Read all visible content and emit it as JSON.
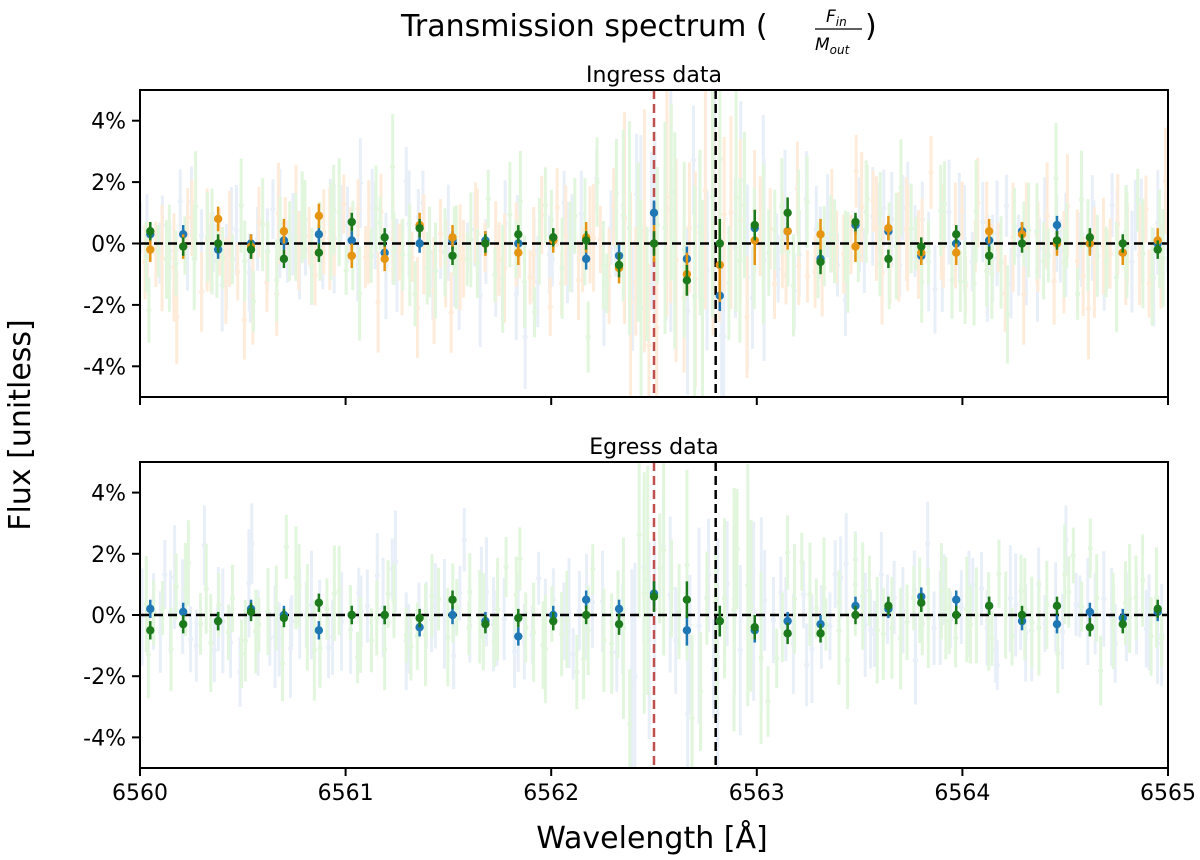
{
  "figure": {
    "suptitle": "Transmission spectrum (",
    "suptitle_num": "F",
    "suptitle_num_sub": "in",
    "suptitle_den": "M",
    "suptitle_den_sub": "out",
    "suptitle_close": ")",
    "ylabel": "Flux [unitless]",
    "xlabel": "Wavelength [Å]"
  },
  "colors": {
    "blue": "#1f77b4",
    "orange": "#e69512",
    "green": "#1c7a1c",
    "faint_blue": "#aec7e8",
    "faint_orange": "#ffbb78",
    "faint_green": "#98df8a",
    "red_line": "#c0504d",
    "black_line": "#000000"
  },
  "chart_data": [
    {
      "type": "scatter",
      "title": "Ingress data",
      "xlim": [
        6560,
        6565
      ],
      "ylim": [
        -5,
        5
      ],
      "x_ticks": [
        6560,
        6561,
        6562,
        6563,
        6564,
        6565
      ],
      "x_tick_labels": [],
      "y_ticks": [
        -4,
        -2,
        0,
        2,
        4
      ],
      "y_tick_labels": [
        "-4%",
        "-2%",
        "0%",
        "2%",
        "4%"
      ],
      "reference_lines": {
        "zero_y": 0,
        "red_x": 6562.5,
        "black_x": 6562.8
      },
      "binned_x": [
        6560.05,
        6560.21,
        6560.38,
        6560.54,
        6560.7,
        6560.87,
        6561.03,
        6561.19,
        6561.36,
        6561.52,
        6561.68,
        6561.84,
        6562.01,
        6562.17,
        6562.33,
        6562.5,
        6562.66,
        6562.82,
        6562.99,
        6563.15,
        6563.31,
        6563.48,
        6563.64,
        6563.8,
        6563.97,
        6564.13,
        6564.29,
        6564.46,
        6564.62,
        6564.78,
        6564.95
      ],
      "series": [
        {
          "color_key": "blue",
          "values": [
            0.3,
            0.3,
            -0.2,
            0.0,
            0.1,
            0.3,
            0.1,
            -0.3,
            0.0,
            0.1,
            0.1,
            0.0,
            0.2,
            -0.5,
            -0.4,
            1.0,
            -0.5,
            -1.7,
            0.5,
            0.4,
            -0.5,
            0.6,
            0.4,
            -0.4,
            0.0,
            0.1,
            0.4,
            0.6,
            0.0,
            -0.3,
            0.0
          ],
          "err": [
            0.3,
            0.3,
            0.3,
            0.3,
            0.3,
            0.3,
            0.3,
            0.3,
            0.3,
            0.3,
            0.3,
            0.3,
            0.3,
            0.35,
            0.35,
            0.4,
            0.4,
            0.5,
            0.35,
            0.3,
            0.3,
            0.3,
            0.3,
            0.3,
            0.3,
            0.3,
            0.3,
            0.3,
            0.3,
            0.3,
            0.3
          ]
        },
        {
          "color_key": "orange",
          "values": [
            -0.2,
            -0.1,
            0.8,
            -0.1,
            0.4,
            0.9,
            -0.4,
            -0.5,
            0.6,
            0.2,
            0.0,
            -0.3,
            0.1,
            0.2,
            -0.8,
            0.0,
            -1.0,
            -0.7,
            0.1,
            0.4,
            0.3,
            -0.1,
            0.5,
            -0.3,
            -0.3,
            0.4,
            0.3,
            0.0,
            0.0,
            -0.3,
            0.1
          ],
          "err": [
            0.4,
            0.4,
            0.4,
            0.4,
            0.4,
            0.4,
            0.4,
            0.4,
            0.4,
            0.4,
            0.4,
            0.4,
            0.4,
            0.5,
            0.5,
            0.6,
            0.7,
            1.2,
            0.8,
            0.6,
            0.5,
            0.5,
            0.4,
            0.4,
            0.4,
            0.4,
            0.4,
            0.4,
            0.4,
            0.4,
            0.4
          ]
        },
        {
          "color_key": "green",
          "values": [
            0.4,
            -0.1,
            0.0,
            -0.2,
            -0.5,
            -0.3,
            0.7,
            0.2,
            0.5,
            -0.4,
            0.0,
            0.3,
            0.2,
            0.1,
            -0.7,
            0.0,
            -1.2,
            0.0,
            0.6,
            1.0,
            -0.6,
            0.7,
            -0.5,
            -0.1,
            0.3,
            -0.4,
            0.0,
            0.1,
            0.2,
            0.0,
            -0.2
          ],
          "err": [
            0.3,
            0.3,
            0.3,
            0.3,
            0.3,
            0.3,
            0.3,
            0.3,
            0.3,
            0.3,
            0.3,
            0.3,
            0.3,
            0.3,
            0.4,
            0.4,
            0.5,
            0.8,
            0.5,
            0.5,
            0.4,
            0.3,
            0.3,
            0.3,
            0.3,
            0.3,
            0.3,
            0.3,
            0.3,
            0.3,
            0.3
          ]
        }
      ]
    },
    {
      "type": "scatter",
      "title": "Egress data",
      "xlim": [
        6560,
        6565
      ],
      "ylim": [
        -5,
        5
      ],
      "x_ticks": [
        6560,
        6561,
        6562,
        6563,
        6564,
        6565
      ],
      "x_tick_labels": [
        "6560",
        "6561",
        "6562",
        "6563",
        "6564",
        "6565"
      ],
      "y_ticks": [
        -4,
        -2,
        0,
        2,
        4
      ],
      "y_tick_labels": [
        "-4%",
        "-2%",
        "0%",
        "2%",
        "4%"
      ],
      "reference_lines": {
        "zero_y": 0,
        "red_x": 6562.5,
        "black_x": 6562.8
      },
      "binned_x": [
        6560.05,
        6560.21,
        6560.38,
        6560.54,
        6560.7,
        6560.87,
        6561.03,
        6561.19,
        6561.36,
        6561.52,
        6561.68,
        6561.84,
        6562.01,
        6562.17,
        6562.33,
        6562.5,
        6562.66,
        6562.82,
        6562.99,
        6563.15,
        6563.31,
        6563.48,
        6563.64,
        6563.8,
        6563.97,
        6564.13,
        6564.29,
        6564.46,
        6564.62,
        6564.78,
        6564.95
      ],
      "series": [
        {
          "color_key": "blue",
          "values": [
            0.2,
            0.1,
            -0.2,
            0.2,
            0.0,
            -0.5,
            0.0,
            0.0,
            -0.4,
            0.0,
            -0.2,
            -0.7,
            0.0,
            0.5,
            0.2,
            0.7,
            -0.5,
            -0.2,
            -0.5,
            -0.2,
            -0.3,
            0.3,
            0.2,
            0.6,
            0.5,
            0.3,
            -0.2,
            -0.3,
            0.1,
            -0.1,
            0.1
          ],
          "err": [
            0.3,
            0.3,
            0.3,
            0.3,
            0.3,
            0.3,
            0.3,
            0.3,
            0.3,
            0.3,
            0.3,
            0.3,
            0.3,
            0.3,
            0.3,
            0.4,
            0.5,
            0.5,
            0.4,
            0.3,
            0.3,
            0.3,
            0.3,
            0.3,
            0.3,
            0.3,
            0.3,
            0.3,
            0.3,
            0.3,
            0.3
          ]
        },
        {
          "color_key": "green",
          "values": [
            -0.5,
            -0.3,
            -0.2,
            0.1,
            -0.1,
            0.4,
            0.0,
            0.0,
            -0.1,
            0.5,
            -0.3,
            -0.1,
            -0.2,
            0.0,
            -0.3,
            0.6,
            0.5,
            -0.2,
            -0.4,
            -0.6,
            -0.6,
            0.0,
            0.3,
            0.4,
            0.0,
            0.3,
            0.0,
            0.3,
            -0.4,
            -0.3,
            0.2
          ],
          "err": [
            0.3,
            0.3,
            0.3,
            0.3,
            0.3,
            0.3,
            0.3,
            0.3,
            0.3,
            0.3,
            0.3,
            0.3,
            0.3,
            0.3,
            0.35,
            0.5,
            0.6,
            0.5,
            0.4,
            0.35,
            0.3,
            0.3,
            0.3,
            0.3,
            0.3,
            0.3,
            0.3,
            0.3,
            0.3,
            0.3,
            0.3
          ]
        }
      ]
    }
  ]
}
